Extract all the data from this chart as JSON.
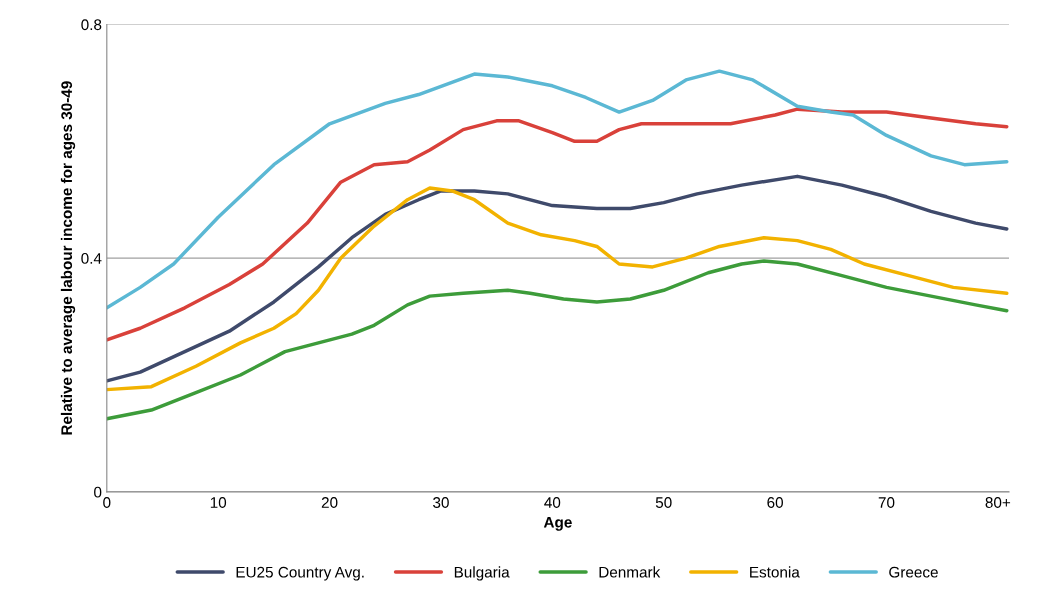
{
  "chart_data": {
    "type": "line",
    "xlabel": "Age",
    "ylabel": "Relative to average labour income for ages 30-49",
    "xlim": [
      0,
      81
    ],
    "ylim": [
      0,
      0.8
    ],
    "xticks": [
      0,
      10,
      20,
      30,
      40,
      50,
      60,
      70,
      {
        "value": 80,
        "label": "80+"
      }
    ],
    "yticks": [
      0,
      0.4,
      0.8
    ],
    "grid": "y",
    "legend": "bottom",
    "marker": "none",
    "line_style": "solid",
    "series": [
      {
        "name": "EU25 Country Avg.",
        "color": "#3f4a6b",
        "x": [
          0,
          3,
          7,
          11,
          15,
          19,
          22,
          25,
          28,
          30,
          33,
          36,
          40,
          44,
          47,
          50,
          53,
          57,
          62,
          66,
          70,
          74,
          78,
          80.8
        ],
        "values": [
          0.19,
          0.205,
          0.24,
          0.275,
          0.325,
          0.385,
          0.435,
          0.475,
          0.5,
          0.515,
          0.515,
          0.51,
          0.49,
          0.485,
          0.485,
          0.495,
          0.51,
          0.525,
          0.54,
          0.525,
          0.505,
          0.48,
          0.46,
          0.45
        ]
      },
      {
        "name": "Bulgaria",
        "color": "#d9413a",
        "x": [
          0,
          3,
          7,
          11,
          14,
          18,
          21,
          24,
          27,
          29,
          32,
          35,
          37,
          40,
          42,
          44,
          46,
          48,
          52,
          56,
          60,
          62,
          66,
          70,
          74,
          78,
          80.8
        ],
        "values": [
          0.26,
          0.28,
          0.315,
          0.355,
          0.39,
          0.46,
          0.53,
          0.56,
          0.565,
          0.585,
          0.62,
          0.635,
          0.635,
          0.615,
          0.6,
          0.6,
          0.62,
          0.63,
          0.63,
          0.63,
          0.645,
          0.655,
          0.65,
          0.65,
          0.64,
          0.63,
          0.625
        ]
      },
      {
        "name": "Denmark",
        "color": "#3d9c3a",
        "x": [
          0,
          4,
          8,
          12,
          16,
          19,
          22,
          24,
          27,
          29,
          32,
          36,
          38,
          41,
          44,
          47,
          50,
          54,
          57,
          59,
          62,
          66,
          70,
          74,
          78,
          80.8
        ],
        "values": [
          0.125,
          0.14,
          0.17,
          0.2,
          0.24,
          0.255,
          0.27,
          0.285,
          0.32,
          0.335,
          0.34,
          0.345,
          0.34,
          0.33,
          0.325,
          0.33,
          0.345,
          0.375,
          0.39,
          0.395,
          0.39,
          0.37,
          0.35,
          0.335,
          0.32,
          0.31
        ]
      },
      {
        "name": "Estonia",
        "color": "#f2b200",
        "x": [
          0,
          4,
          8,
          12,
          15,
          17,
          19,
          21,
          24,
          27,
          29,
          31,
          33,
          36,
          39,
          42,
          44,
          46,
          49,
          52,
          55,
          59,
          62,
          65,
          68,
          72,
          76,
          80.8
        ],
        "values": [
          0.175,
          0.18,
          0.215,
          0.255,
          0.28,
          0.305,
          0.345,
          0.4,
          0.455,
          0.5,
          0.52,
          0.515,
          0.5,
          0.46,
          0.44,
          0.43,
          0.42,
          0.39,
          0.385,
          0.4,
          0.42,
          0.435,
          0.43,
          0.415,
          0.39,
          0.37,
          0.35,
          0.34
        ]
      },
      {
        "name": "Greece",
        "color": "#5bb8d4",
        "x": [
          0,
          3,
          6,
          10,
          15,
          20,
          25,
          28,
          33,
          36,
          40,
          43,
          46,
          49,
          52,
          55,
          58,
          62,
          65,
          67,
          70,
          74,
          77,
          80.8
        ],
        "values": [
          0.315,
          0.35,
          0.39,
          0.47,
          0.56,
          0.63,
          0.665,
          0.68,
          0.715,
          0.71,
          0.695,
          0.675,
          0.65,
          0.67,
          0.705,
          0.72,
          0.705,
          0.66,
          0.65,
          0.645,
          0.61,
          0.575,
          0.56,
          0.565
        ]
      }
    ]
  }
}
